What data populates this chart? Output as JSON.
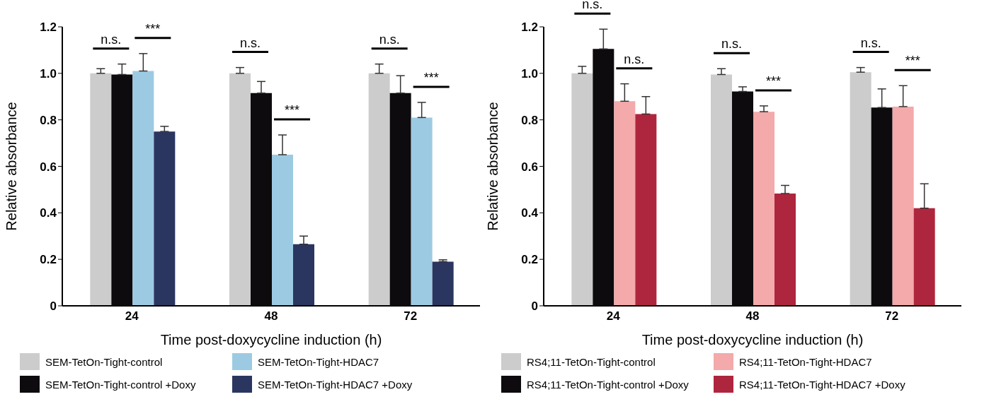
{
  "chart_data": [
    {
      "type": "bar",
      "xlabel": "Time post-doxycycline induction (h)",
      "ylabel": "Relative absorbance",
      "categories": [
        "24",
        "48",
        "72"
      ],
      "ylim": [
        0,
        1.2
      ],
      "yticks": [
        0,
        0.2,
        0.4,
        0.6,
        0.8,
        {
          "value": 1,
          "label": "1.0"
        },
        1.2
      ],
      "legend": "bottom",
      "series": [
        {
          "name": "SEM-TetOn-Tight-control",
          "color": "#cccccc",
          "values": [
            1.0,
            1.0,
            1.0
          ],
          "errors": [
            [
              1.0,
              1.02
            ],
            [
              1.0,
              1.025
            ],
            [
              1.0,
              1.04
            ]
          ]
        },
        {
          "name": "SEM-TetOn-Tight-control +Doxy",
          "color": "#0d0b0e",
          "values": [
            0.995,
            0.915,
            0.915
          ],
          "errors": [
            [
              0.995,
              1.04
            ],
            [
              0.915,
              0.965
            ],
            [
              0.915,
              0.99
            ]
          ]
        },
        {
          "name": "SEM-TetOn-Tight-HDAC7",
          "color": "#9dcae3",
          "values": [
            1.01,
            0.65,
            0.81
          ],
          "errors": [
            [
              1.01,
              1.085
            ],
            [
              0.65,
              0.735
            ],
            [
              0.81,
              0.875
            ]
          ]
        },
        {
          "name": "SEM-TetOn-Tight-HDAC7 +Doxy",
          "color": "#2b3660",
          "values": [
            0.75,
            0.265,
            0.19
          ],
          "errors": [
            [
              0.75,
              0.772
            ],
            [
              0.265,
              0.3
            ],
            [
              0.19,
              0.198
            ]
          ]
        }
      ],
      "annotations": [
        "n.s.",
        "***",
        "n.s.",
        "***",
        "n.s.",
        "***"
      ]
    },
    {
      "type": "bar",
      "xlabel": "Time post-doxycycline induction (h)",
      "ylabel": "Relative absorbance",
      "categories": [
        "24",
        "48",
        "72"
      ],
      "ylim": [
        0,
        1.2
      ],
      "yticks": [
        0,
        0.2,
        0.4,
        0.6,
        0.8,
        {
          "value": 1,
          "label": "1.0"
        },
        1.2
      ],
      "legend": "bottom",
      "series": [
        {
          "name": "RS4;11-TetOn-Tight-control",
          "color": "#cccccc",
          "values": [
            1.0,
            0.995,
            1.005
          ],
          "errors": [
            [
              1.0,
              1.03
            ],
            [
              0.995,
              1.02
            ],
            [
              1.005,
              1.025
            ]
          ]
        },
        {
          "name": "RS4;11-TetOn-Tight-control +Doxy",
          "color": "#0d0b0e",
          "values": [
            1.105,
            0.922,
            0.853
          ],
          "errors": [
            [
              1.105,
              1.19
            ],
            [
              0.922,
              0.942
            ],
            [
              0.853,
              0.933
            ]
          ]
        },
        {
          "name": "RS4;11-TetOn-Tight-HDAC7",
          "color": "#f4a9aa",
          "values": [
            0.88,
            0.835,
            0.857
          ],
          "errors": [
            [
              0.88,
              0.955
            ],
            [
              0.835,
              0.86
            ],
            [
              0.857,
              0.947
            ]
          ]
        },
        {
          "name": "RS4;11-TetOn-Tight-HDAC7 +Doxy",
          "color": "#ae263d",
          "values": [
            0.825,
            0.483,
            0.42
          ],
          "errors": [
            [
              0.825,
              0.9
            ],
            [
              0.483,
              0.518
            ],
            [
              0.42,
              0.525
            ]
          ]
        }
      ],
      "annotations": [
        "n.s.",
        "n.s.",
        "n.s.",
        "***",
        "n.s.",
        "***"
      ]
    }
  ]
}
